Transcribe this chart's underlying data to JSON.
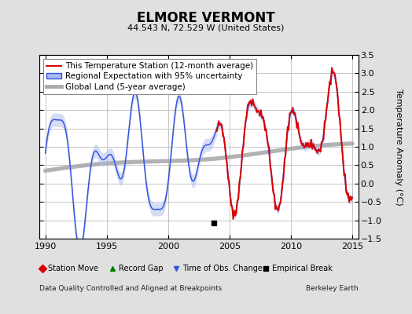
{
  "title": "ELMORE VERMONT",
  "subtitle": "44.543 N, 72.529 W (United States)",
  "xlabel_left": "Data Quality Controlled and Aligned at Breakpoints",
  "xlabel_right": "Berkeley Earth",
  "ylabel": "Temperature Anomaly (°C)",
  "xlim": [
    1989.5,
    2015.5
  ],
  "ylim": [
    -1.5,
    3.5
  ],
  "yticks": [
    -1.5,
    -1.0,
    -0.5,
    0.0,
    0.5,
    1.0,
    1.5,
    2.0,
    2.5,
    3.0,
    3.5
  ],
  "xticks": [
    1990,
    1995,
    2000,
    2005,
    2010,
    2015
  ],
  "bg_color": "#e0e0e0",
  "plot_bg_color": "#ffffff",
  "grid_color": "#bbbbbb",
  "empirical_break_year": 2003.7,
  "empirical_break_value": -1.07,
  "regional_color": "#3355dd",
  "regional_band_color": "#aabbee",
  "station_color": "#dd0000",
  "global_color": "#aaaaaa",
  "legend_fontsize": 7.5,
  "tick_labelsize": 8,
  "title_fontsize": 12,
  "subtitle_fontsize": 8,
  "ylabel_fontsize": 8
}
